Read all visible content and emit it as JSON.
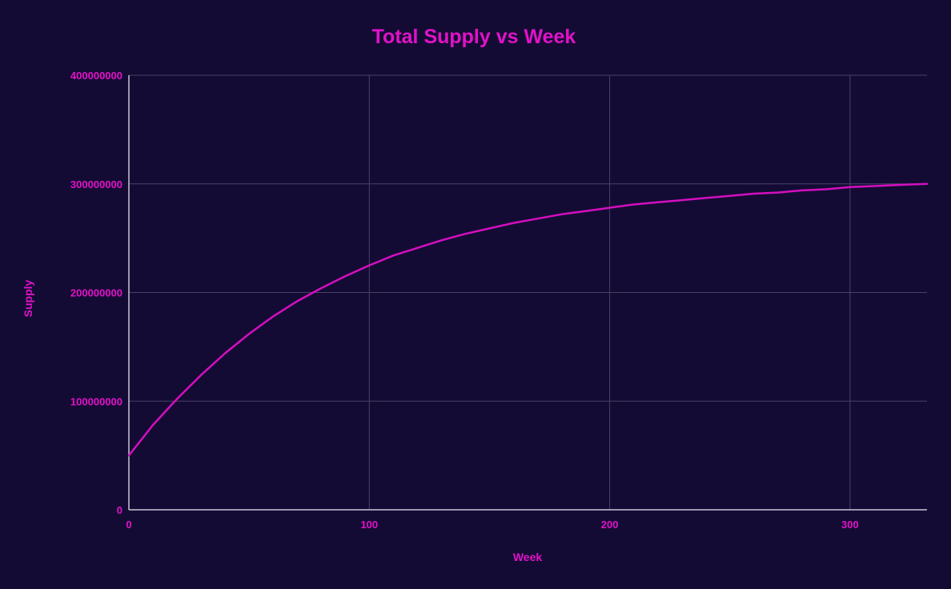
{
  "chart_data": {
    "type": "line",
    "title": "Total Supply vs Week",
    "xlabel": "Week",
    "ylabel": "Supply",
    "xlim": [
      0,
      332
    ],
    "ylim": [
      0,
      400000000
    ],
    "x_ticks": [
      0,
      100,
      200,
      300
    ],
    "y_ticks": [
      0,
      100000000,
      200000000,
      300000000,
      400000000
    ],
    "x_tick_labels": [
      "0",
      "100",
      "200",
      "300"
    ],
    "y_tick_labels": [
      "0",
      "100000000",
      "200000000",
      "300000000",
      "400000000"
    ],
    "grid": true,
    "legend": "none",
    "series": [
      {
        "x": [
          0,
          10,
          20,
          30,
          40,
          50,
          60,
          70,
          80,
          90,
          100,
          110,
          120,
          130,
          140,
          150,
          160,
          170,
          180,
          190,
          200,
          210,
          220,
          230,
          240,
          250,
          260,
          270,
          280,
          290,
          300,
          310,
          320,
          332
        ],
        "values": [
          50000000,
          78000000,
          102000000,
          124000000,
          144000000,
          162000000,
          178000000,
          192000000,
          204000000,
          215000000,
          225000000,
          234000000,
          241000000,
          248000000,
          254000000,
          259000000,
          264000000,
          268000000,
          272000000,
          275000000,
          278000000,
          281000000,
          283000000,
          285000000,
          287000000,
          289000000,
          291000000,
          292000000,
          294000000,
          295000000,
          297000000,
          298000000,
          299000000,
          300000000
        ]
      }
    ],
    "colors": {
      "background": "#140b35",
      "accent": "#e212c8",
      "line": "#d40fbf",
      "grid": "#4a4263",
      "axis": "#c9c4d6"
    }
  }
}
